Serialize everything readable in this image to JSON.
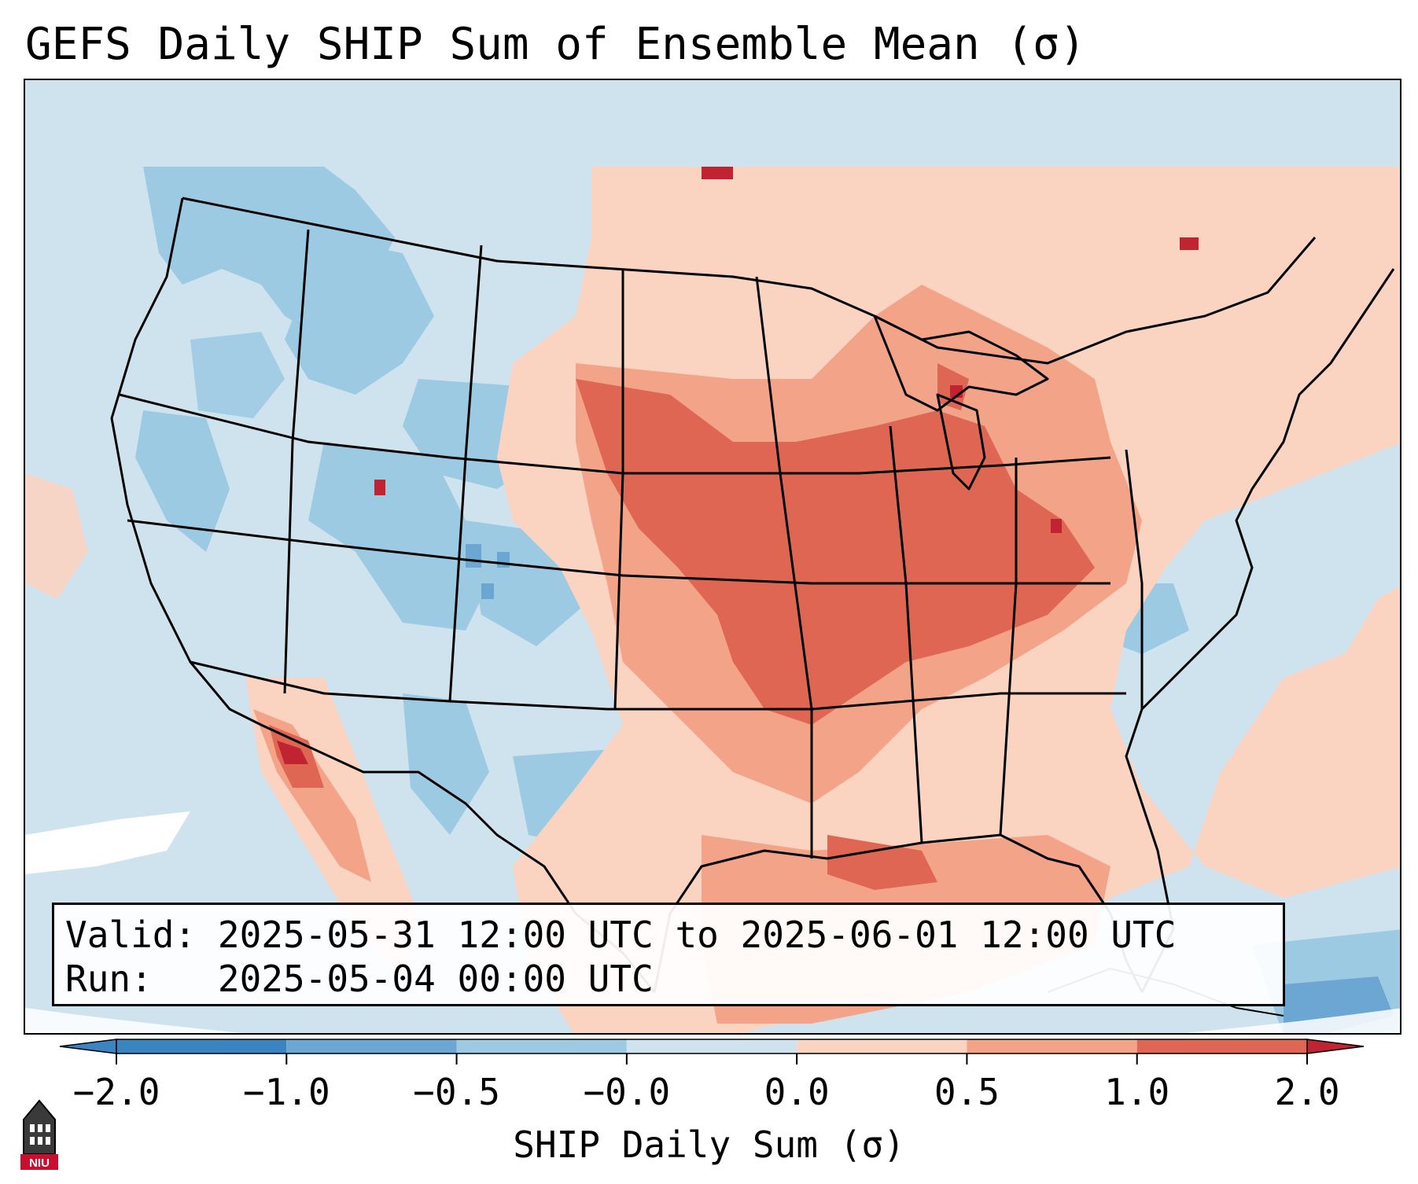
{
  "title": "GEFS Daily SHIP Sum of Ensemble Mean (σ)",
  "info": {
    "valid_label": "Valid:",
    "valid_value": "2025-05-31 12:00 UTC to 2025-06-01 12:00 UTC",
    "run_label": "Run:",
    "run_value": "2025-05-04 00:00 UTC"
  },
  "colorbar": {
    "label": "SHIP Daily Sum (σ)",
    "ticks": [
      "−2.0",
      "−1.0",
      "−0.5",
      "−0.0",
      "0.0",
      "0.5",
      "1.0",
      "2.0"
    ],
    "colors": [
      "#3b84c2",
      "#6ba7d2",
      "#9ccae2",
      "#cfe3ef",
      "#fad3c1",
      "#f3a388",
      "#de6652",
      "#c02430"
    ],
    "extend": "both"
  },
  "map": {
    "projection": "Lambert conformal (CONUS)",
    "background_color": "#cfe3ef",
    "boundaries": [
      "coastlines",
      "country borders",
      "state borders"
    ]
  },
  "logo": {
    "text": "NIU",
    "icon": "university-tower-logo"
  }
}
